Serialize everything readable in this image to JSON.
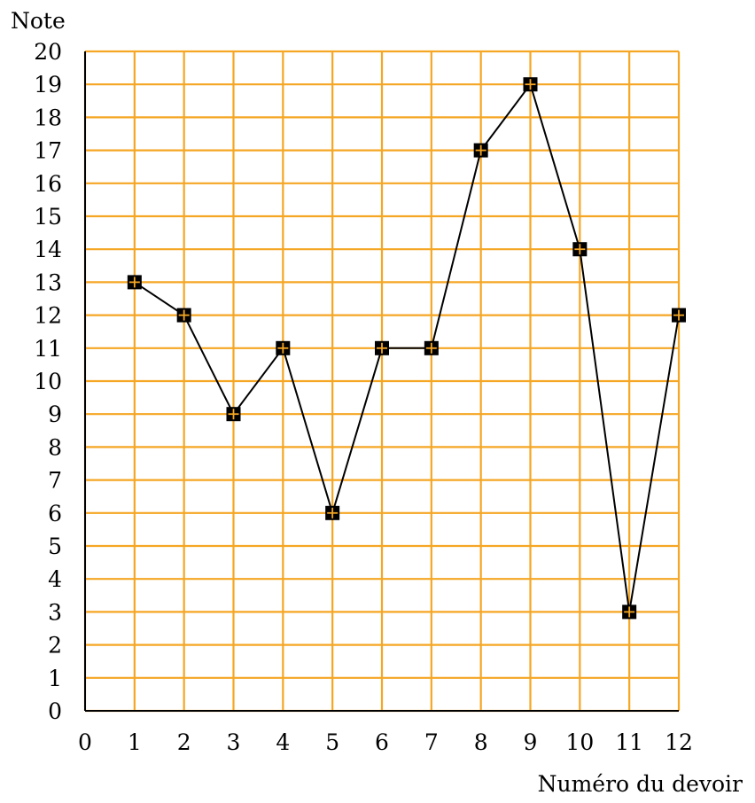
{
  "chart_data": {
    "type": "line",
    "xlabel": "Numéro du devoir",
    "ylabel": "Note",
    "xlim": [
      0,
      12
    ],
    "ylim": [
      0,
      20
    ],
    "x_ticks": [
      "0",
      "1",
      "2",
      "3",
      "4",
      "5",
      "6",
      "7",
      "8",
      "9",
      "10",
      "11",
      "12"
    ],
    "y_ticks": [
      "0",
      "1",
      "2",
      "3",
      "4",
      "5",
      "6",
      "7",
      "8",
      "9",
      "10",
      "11",
      "12",
      "13",
      "14",
      "15",
      "16",
      "17",
      "18",
      "19",
      "20"
    ],
    "grid": true,
    "grid_color": "#f5a623",
    "line_color": "#000000",
    "marker": "square-cross",
    "series": [
      {
        "x": [
          1,
          2,
          3,
          4,
          5,
          6,
          7,
          8,
          9,
          10,
          11,
          12
        ],
        "values": [
          13,
          12,
          9,
          11,
          6,
          11,
          11,
          17,
          19,
          14,
          3,
          12
        ]
      }
    ]
  }
}
